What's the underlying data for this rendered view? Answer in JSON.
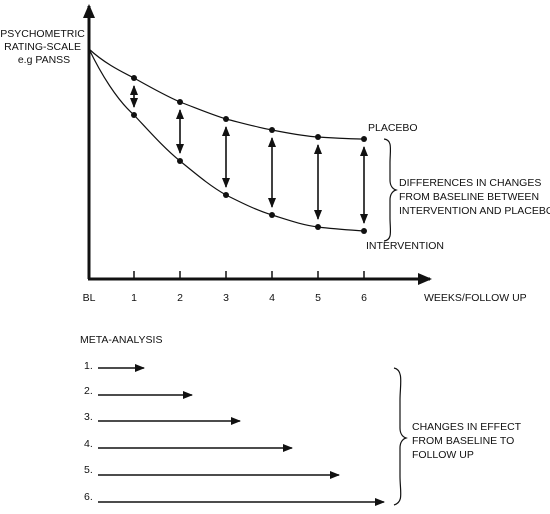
{
  "chart": {
    "y_axis_label": [
      "PSYCHOMETRIC",
      "RATING-SCALE",
      "e.g PANSS"
    ],
    "x_axis_label": "WEEKS/FOLLOW UP",
    "x_ticks": [
      "BL",
      "1",
      "2",
      "3",
      "4",
      "5",
      "6"
    ],
    "placebo_label": "PLACEBO",
    "intervention_label": "INTERVENTION",
    "brace_label": [
      "DIFFERENCES IN CHANGES",
      "FROM BASELINE BETWEEN",
      "INTERVENTION AND PLACEBO"
    ]
  },
  "meta": {
    "title": "META-ANALYSIS",
    "items": [
      "1.",
      "2.",
      "3.",
      "4.",
      "5.",
      "6."
    ],
    "brace_label": [
      "CHANGES IN EFFECT",
      "FROM BASELINE TO",
      "FOLLOW UP"
    ]
  },
  "colors": {
    "ink": "#111111",
    "background": "#ffffff"
  }
}
